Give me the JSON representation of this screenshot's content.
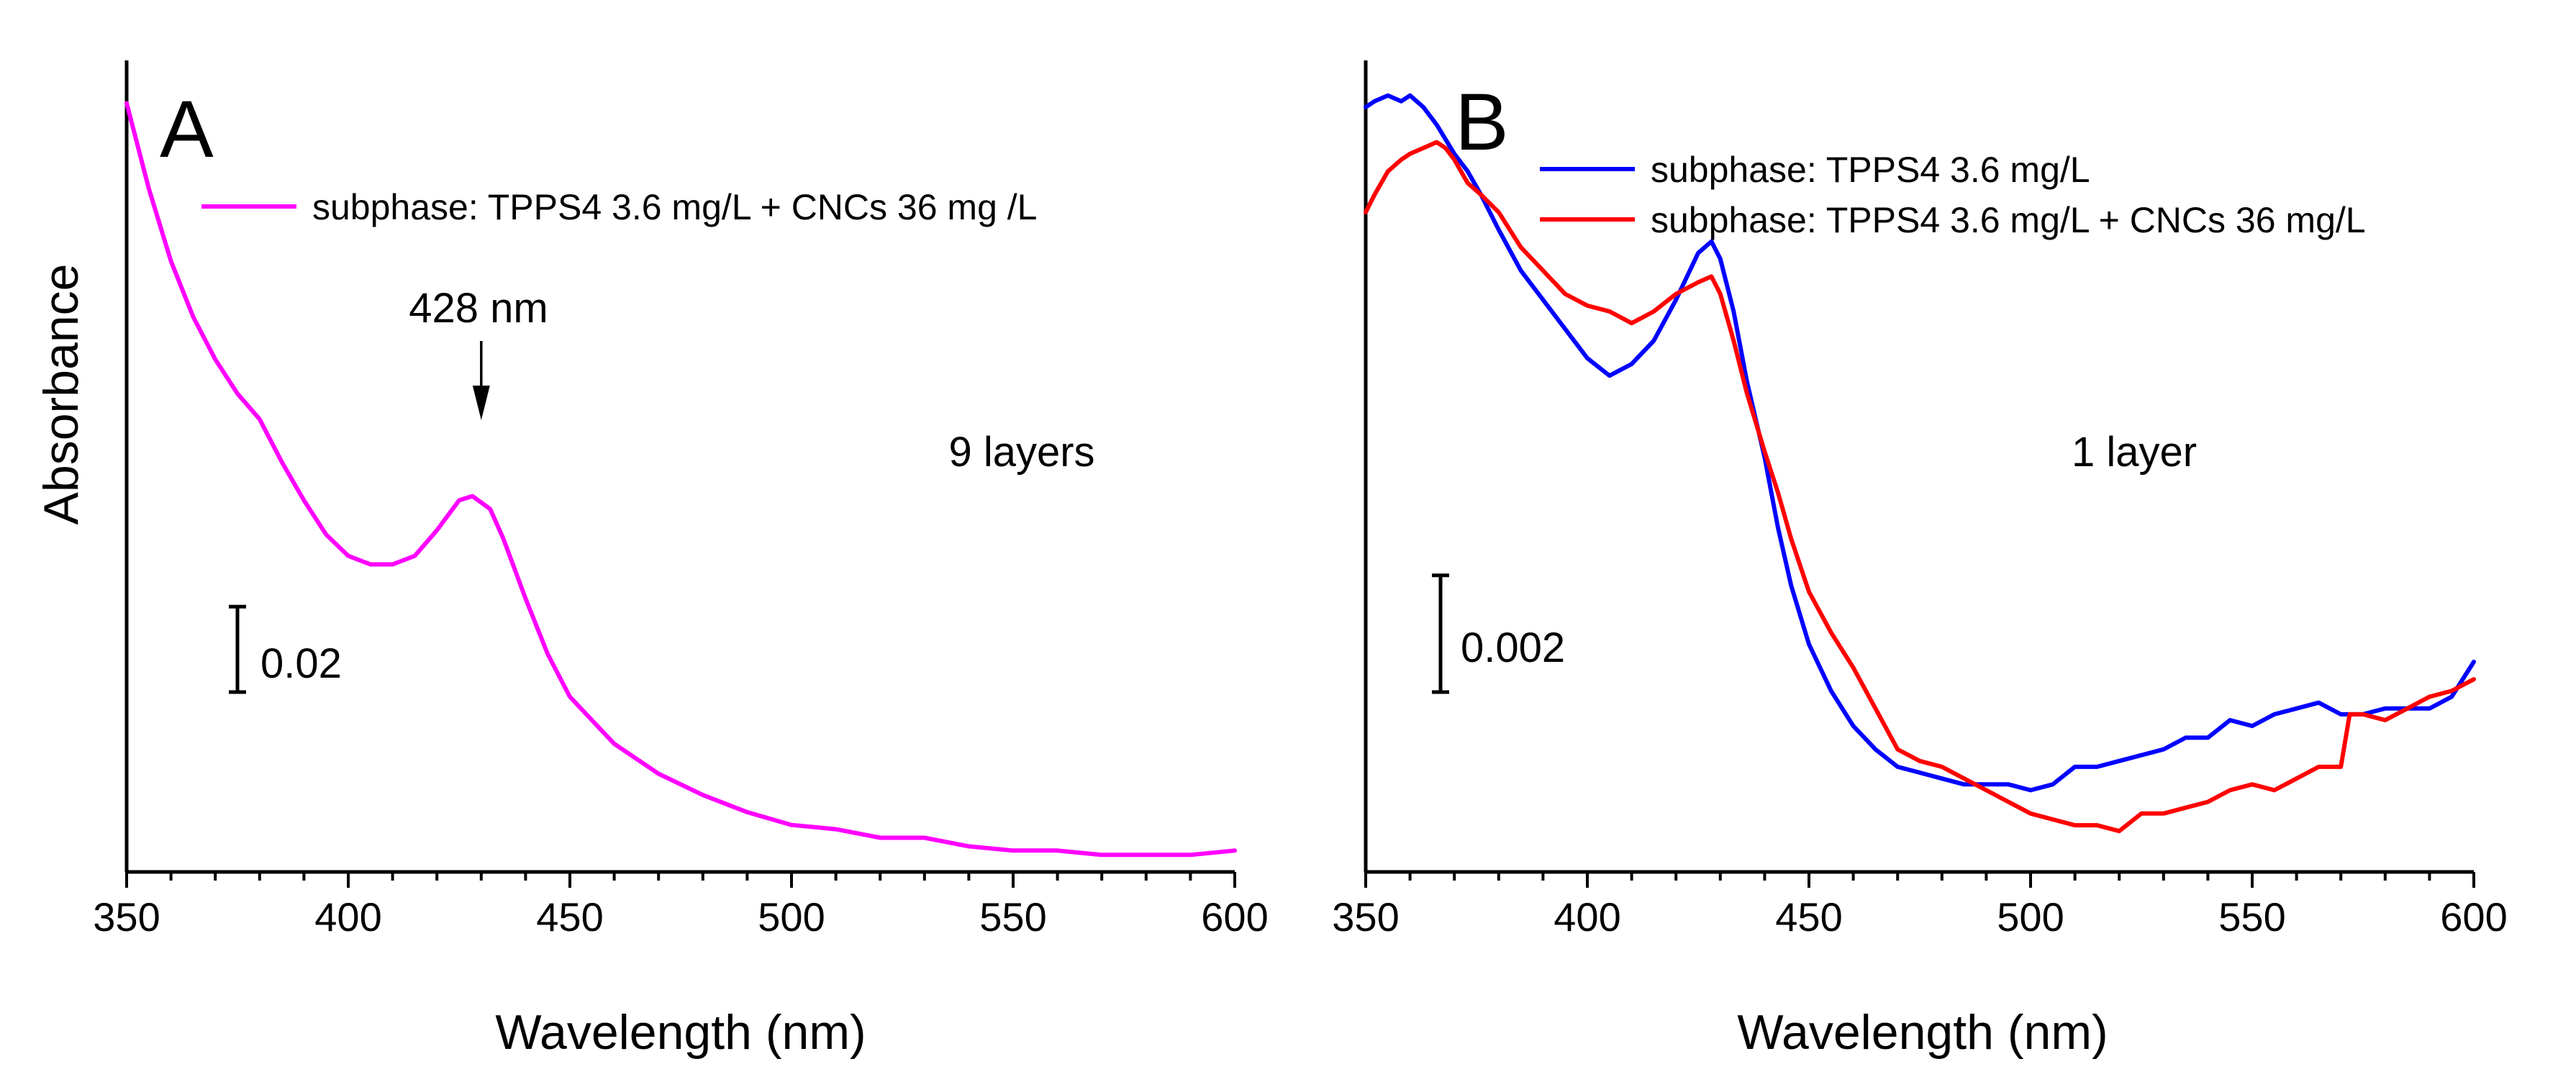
{
  "chart_data": [
    {
      "type": "line",
      "panel_label": "A",
      "xlabel": "Wavelength (nm)",
      "ylabel": "Absorbance",
      "xlim": [
        350,
        600
      ],
      "ylim": [
        0.14,
        0.33
      ],
      "x_ticks": [
        350,
        400,
        450,
        500,
        550,
        600
      ],
      "x_tick_labels": [
        "350",
        "400",
        "450",
        "500",
        "550",
        "600"
      ],
      "legend": {
        "position": "top",
        "entries": [
          "subphase: TPPS4 3.6 mg/L + CNCs 36 mg /L"
        ]
      },
      "annotations": {
        "peak_label": "428 nm",
        "peak_x": 430,
        "layers_label": "9 layers",
        "scale_bar_label": "0.02",
        "scale_bar_value": 0.02
      },
      "series": [
        {
          "name": "subphase: TPPS4 3.6 mg/L + CNCs 36 mg /L",
          "color": "#ff00ff",
          "x": [
            350,
            355,
            360,
            365,
            370,
            375,
            380,
            385,
            390,
            395,
            400,
            405,
            410,
            415,
            420,
            425,
            428,
            432,
            435,
            440,
            445,
            450,
            460,
            470,
            480,
            490,
            500,
            510,
            520,
            530,
            540,
            550,
            560,
            570,
            580,
            590,
            600
          ],
          "values": [
            0.32,
            0.3,
            0.283,
            0.27,
            0.26,
            0.252,
            0.246,
            0.236,
            0.227,
            0.219,
            0.214,
            0.212,
            0.212,
            0.214,
            0.22,
            0.227,
            0.228,
            0.225,
            0.218,
            0.204,
            0.191,
            0.181,
            0.17,
            0.163,
            0.158,
            0.154,
            0.151,
            0.15,
            0.148,
            0.148,
            0.146,
            0.145,
            0.145,
            0.144,
            0.144,
            0.144,
            0.145
          ]
        }
      ]
    },
    {
      "type": "line",
      "panel_label": "B",
      "xlabel": "Wavelength (nm)",
      "xlim": [
        350,
        600
      ],
      "ylim": [
        -0.0016,
        0.0123
      ],
      "x_ticks": [
        350,
        400,
        450,
        500,
        550,
        600
      ],
      "x_tick_labels": [
        "350",
        "400",
        "450",
        "500",
        "550",
        "600"
      ],
      "legend": {
        "position": "top-right",
        "entries": [
          "subphase: TPPS4 3.6 mg/L",
          "subphase: TPPS4 3.6 mg/L + CNCs 36 mg/L"
        ]
      },
      "annotations": {
        "layers_label": "1 layer",
        "scale_bar_label": "0.002",
        "scale_bar_value": 0.002
      },
      "series": [
        {
          "name": "subphase: TPPS4 3.6 mg/L",
          "color": "#0000ff",
          "x": [
            350,
            352,
            355,
            358,
            360,
            363,
            366,
            370,
            373,
            376,
            380,
            385,
            390,
            395,
            400,
            405,
            410,
            415,
            420,
            425,
            428,
            430,
            433,
            436,
            440,
            443,
            446,
            450,
            455,
            460,
            465,
            470,
            475,
            480,
            485,
            490,
            495,
            500,
            505,
            510,
            515,
            520,
            525,
            530,
            535,
            540,
            545,
            550,
            555,
            560,
            565,
            570,
            575,
            580,
            585,
            590,
            595,
            600
          ],
          "values": [
            0.0115,
            0.0116,
            0.0117,
            0.0116,
            0.0117,
            0.0115,
            0.0112,
            0.0107,
            0.0104,
            0.01,
            0.0094,
            0.0087,
            0.0082,
            0.0077,
            0.0072,
            0.0069,
            0.0071,
            0.0075,
            0.0082,
            0.009,
            0.0092,
            0.0089,
            0.008,
            0.0068,
            0.0055,
            0.0043,
            0.0033,
            0.0023,
            0.0015,
            0.0009,
            0.0005,
            0.0002,
            0.0001,
            0.0,
            -0.0001,
            -0.0001,
            -0.0001,
            -0.0002,
            -0.0001,
            0.0002,
            0.0002,
            0.0003,
            0.0004,
            0.0005,
            0.0007,
            0.0007,
            0.001,
            0.0009,
            0.0011,
            0.0012,
            0.0013,
            0.0011,
            0.0011,
            0.0012,
            0.0012,
            0.0012,
            0.0014,
            0.002
          ]
        },
        {
          "name": "subphase: TPPS4 3.6 mg/L + CNCs 36 mg/L",
          "color": "#ff0000",
          "x": [
            350,
            352,
            355,
            358,
            360,
            363,
            366,
            368,
            370,
            373,
            376,
            380,
            385,
            390,
            395,
            400,
            405,
            410,
            415,
            420,
            425,
            428,
            430,
            433,
            436,
            440,
            443,
            446,
            450,
            455,
            460,
            465,
            470,
            475,
            480,
            485,
            490,
            495,
            500,
            505,
            510,
            515,
            520,
            525,
            530,
            535,
            540,
            545,
            550,
            555,
            560,
            565,
            570,
            572,
            575,
            580,
            585,
            590,
            595,
            600
          ],
          "values": [
            0.0097,
            0.01,
            0.0104,
            0.0106,
            0.0107,
            0.0108,
            0.0109,
            0.0108,
            0.0106,
            0.0102,
            0.01,
            0.0097,
            0.0091,
            0.0087,
            0.0083,
            0.0081,
            0.008,
            0.0078,
            0.008,
            0.0083,
            0.0085,
            0.0086,
            0.0083,
            0.0075,
            0.0066,
            0.0056,
            0.0049,
            0.0041,
            0.0032,
            0.0025,
            0.0019,
            0.0012,
            0.0005,
            0.0003,
            0.0002,
            0.0,
            -0.0002,
            -0.0004,
            -0.0006,
            -0.0007,
            -0.0008,
            -0.0008,
            -0.0009,
            -0.0006,
            -0.0006,
            -0.0005,
            -0.0004,
            -0.0002,
            -0.0001,
            -0.0002,
            0.0,
            0.0002,
            0.0002,
            0.0011,
            0.0011,
            0.001,
            0.0012,
            0.0014,
            0.0015,
            0.0017
          ]
        }
      ]
    }
  ]
}
